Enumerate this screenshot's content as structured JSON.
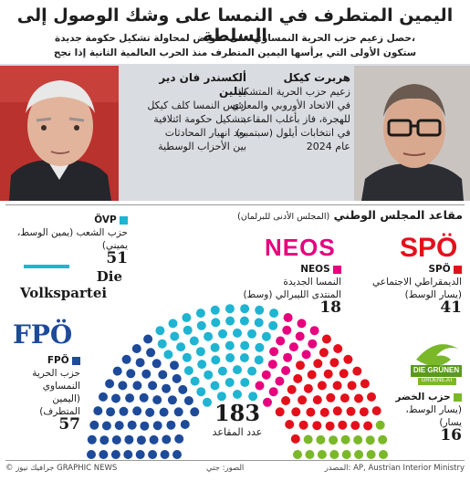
{
  "title": "اليمين المتطرف في النمسا على وشك الوصول إلى السلطة",
  "subtitle_line1": "حصل زعيم حزب الحرية النمساوي على تفويض لمحاولة تشكيل حكومة جديدة،",
  "subtitle_line2": "ستكون الأولى التي يرأسها اليمين المتطرف منذ الحرب العالمية الثانية إذا نجح",
  "bio_left": {
    "name": "ألكسندر فان دير بيلين",
    "text": [
      "رئيس النمسا كلف كيكل",
      "بتشكيل حكومة ائتلافية",
      "بعد انهيار المحادثات",
      "بين الأحزاب الوسطية"
    ]
  },
  "bio_right": {
    "name": "هربرت كيكل",
    "text": [
      "زعيم حزب الحرية المتشكك",
      "في الاتحاد الأوروبي والمعادي",
      "للهجرة، فاز بأغلب المقاعد",
      "في انتخابات أيلول (سبتمبر)",
      "عام 2024"
    ]
  },
  "section": {
    "title": "مقاعد المجلس الوطني",
    "subtitle": "(المجلس الأدنى للبرلمان)"
  },
  "logos": {
    "spo": "SPÖ",
    "neos": "NEOS",
    "fpo": "FPÖ",
    "ovp_die": "Die",
    "ovp_name": "Volkspartei",
    "greens": "DIE GRÜNEN",
    "greens_sub": "GRUENE.AT"
  },
  "parties": {
    "ovp": {
      "code": "ÖVP",
      "desc": [
        "حزب الشعب (يمين الوسط،",
        "يميني)"
      ],
      "seats": "51",
      "color": "#1fb4d2"
    },
    "neos": {
      "code": "NEOS",
      "desc": [
        "النمسا الجديدة",
        "المنتدى الليبرالي (وسط)"
      ],
      "seats": "18",
      "color": "#e6007e"
    },
    "spo": {
      "code": "SPÖ",
      "desc": [
        "الديمقراطي الاجتماعي",
        "(يسار الوسط)"
      ],
      "seats": "41",
      "color": "#e3101b"
    },
    "fpo": {
      "code": "FPÖ",
      "desc": [
        "حزب الحرية",
        "النمساوي",
        "(اليمين",
        "المتطرف)"
      ],
      "seats": "57",
      "color": "#1e4a9a"
    },
    "gruene": {
      "code": "حزب الخضر",
      "desc": [
        "(يسار الوسط،",
        "يسار)"
      ],
      "seats": "16",
      "color": "#7ab829"
    }
  },
  "total": {
    "value": "183",
    "label": "عدد المقاعد"
  },
  "footer": {
    "left": "© جرافيك نيوز GRAPHIC NEWS",
    "middle": "الصور: جتي",
    "right": "المصدر: AP, Austrian Interior Ministry"
  },
  "chart_data": {
    "type": "parliament",
    "total": 183,
    "series": [
      {
        "name": "FPÖ",
        "values": [
          57
        ]
      },
      {
        "name": "ÖVP",
        "values": [
          51
        ]
      },
      {
        "name": "NEOS",
        "values": [
          18
        ]
      },
      {
        "name": "SPÖ",
        "values": [
          41
        ]
      },
      {
        "name": "Grüne",
        "values": [
          16
        ]
      }
    ]
  }
}
